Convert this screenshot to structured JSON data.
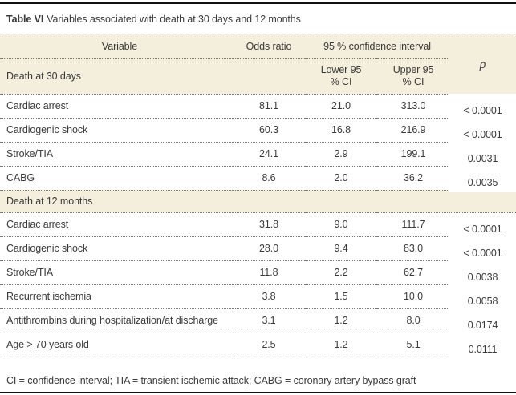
{
  "colors": {
    "band": "#f4efdc",
    "text": "#3a3a3a",
    "divider": "#777777",
    "frame": "#111111",
    "background": "#ffffff"
  },
  "title": {
    "prefix": "Table VI",
    "text": "Variables associated with death at 30 days and 12 months"
  },
  "table": {
    "header": {
      "variable": "Variable",
      "odds_ratio": "Odds ratio",
      "ci_span": "95 % confidence interval",
      "p": "p",
      "lower_line1": "Lower 95",
      "lower_line2": "% CI",
      "upper_line1": "Upper 95",
      "upper_line2": "% CI"
    },
    "sections": [
      {
        "label": "Death at 30 days",
        "rows": [
          {
            "variable": "Cardiac arrest",
            "odds_ratio": "81.1",
            "lower": "21.0",
            "upper": "313.0",
            "p": "< 0.0001"
          },
          {
            "variable": "Cardiogenic shock",
            "odds_ratio": "60.3",
            "lower": "16.8",
            "upper": "216.9",
            "p": "< 0.0001"
          },
          {
            "variable": "Stroke/TIA",
            "odds_ratio": "24.1",
            "lower": "2.9",
            "upper": "199.1",
            "p": "0.0031"
          },
          {
            "variable": "CABG",
            "odds_ratio": "8.6",
            "lower": "2.0",
            "upper": "36.2",
            "p": "0.0035"
          }
        ]
      },
      {
        "label": "Death at 12 months",
        "rows": [
          {
            "variable": "Cardiac arrest",
            "odds_ratio": "31.8",
            "lower": "9.0",
            "upper": "111.7",
            "p": "< 0.0001"
          },
          {
            "variable": "Cardiogenic shock",
            "odds_ratio": "28.0",
            "lower": "9.4",
            "upper": "83.0",
            "p": "< 0.0001"
          },
          {
            "variable": "Stroke/TIA",
            "odds_ratio": "11.8",
            "lower": "2.2",
            "upper": "62.7",
            "p": "0.0038"
          },
          {
            "variable": "Recurrent ischemia",
            "odds_ratio": "3.8",
            "lower": "1.5",
            "upper": "10.0",
            "p": "0.0058"
          },
          {
            "variable": "Antithrombins during hospitalization/at discharge",
            "odds_ratio": "3.1",
            "lower": "1.2",
            "upper": "8.0",
            "p": "0.0174"
          },
          {
            "variable": "Age > 70 years old",
            "odds_ratio": "2.5",
            "lower": "1.2",
            "upper": "5.1",
            "p": "0.0111"
          }
        ]
      }
    ]
  },
  "footnote": "CI = confidence interval; TIA = transient ischemic attack; CABG = coronary artery bypass graft"
}
